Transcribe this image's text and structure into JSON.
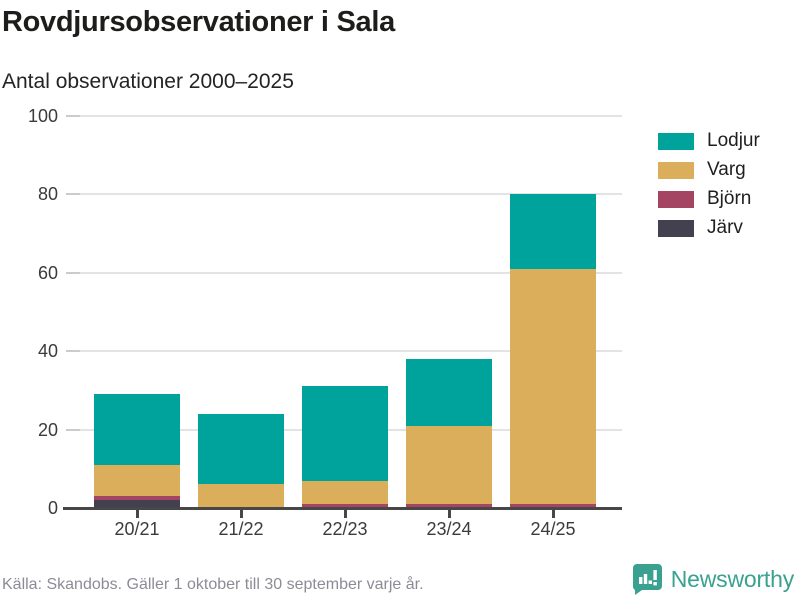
{
  "header": {
    "title": "Rovdjursobservationer i Sala",
    "subtitle": "Antal observationer 2000–2025"
  },
  "chart_data": {
    "type": "bar",
    "stacked": true,
    "title": "Rovdjursobservationer i Sala",
    "subtitle": "Antal observationer 2000–2025",
    "categories": [
      "20/21",
      "21/22",
      "22/23",
      "23/24",
      "24/25"
    ],
    "series": [
      {
        "name": "Lodjur",
        "color": "#00a39b",
        "values": [
          18,
          18,
          24,
          17,
          19
        ]
      },
      {
        "name": "Varg",
        "color": "#dbae5c",
        "values": [
          8,
          6,
          6,
          20,
          60
        ]
      },
      {
        "name": "Björn",
        "color": "#a54564",
        "values": [
          1,
          0,
          1,
          1,
          1
        ]
      },
      {
        "name": "Järv",
        "color": "#434050",
        "values": [
          2,
          0,
          0,
          0,
          0
        ]
      }
    ],
    "stack_totals": [
      29,
      24,
      31,
      38,
      80
    ],
    "ylim": [
      0,
      100
    ],
    "yticks": [
      0,
      20,
      40,
      60,
      80,
      100
    ],
    "grid": true,
    "legend_position": "right-top",
    "xlabel": "",
    "ylabel": ""
  },
  "colors": {
    "axis": "#474747",
    "gridline": "#e3e3e3",
    "title_text": "#1d1d1b",
    "footer_text": "#8c8c97",
    "brand_teal": "#3aa190"
  },
  "footer": {
    "source": "Källa: Skandobs. Gäller 1 oktober till 30 september varje år.",
    "brand": "Newsworthy"
  }
}
